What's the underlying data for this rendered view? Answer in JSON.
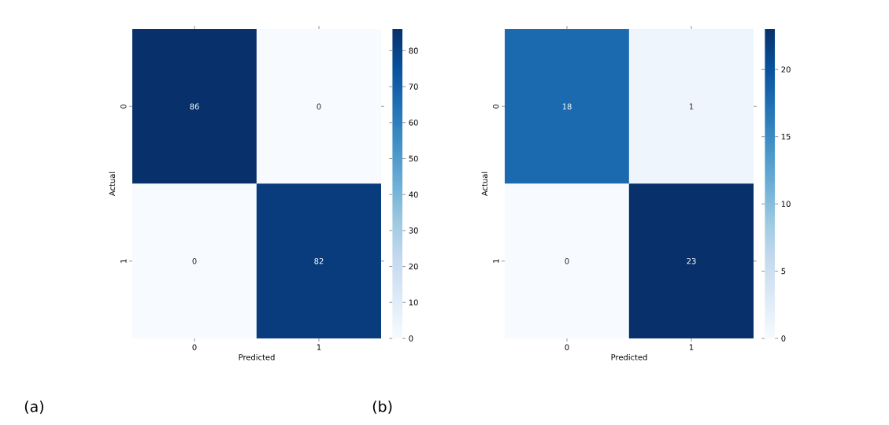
{
  "chart_data": [
    {
      "type": "heatmap",
      "categories": [
        "0",
        "1"
      ],
      "y_categories": [
        "0",
        "1"
      ],
      "cells": [
        [
          86,
          0
        ],
        [
          0,
          82
        ]
      ],
      "clim": [
        0,
        86
      ],
      "cticks": [
        0,
        10,
        20,
        30,
        40,
        50,
        60,
        70,
        80
      ],
      "xlabel": "Predicted",
      "ylabel": "Actual",
      "data_labels": true,
      "annotations": [
        "(a)"
      ]
    },
    {
      "type": "heatmap",
      "categories": [
        "0",
        "1"
      ],
      "y_categories": [
        "0",
        "1"
      ],
      "cells": [
        [
          18,
          1
        ],
        [
          0,
          23
        ]
      ],
      "clim": [
        0,
        23
      ],
      "cticks": [
        0,
        5,
        10,
        15,
        20
      ],
      "xlabel": "Predicted",
      "ylabel": "Actual",
      "data_labels": true,
      "annotations": [
        "(b)"
      ]
    }
  ]
}
